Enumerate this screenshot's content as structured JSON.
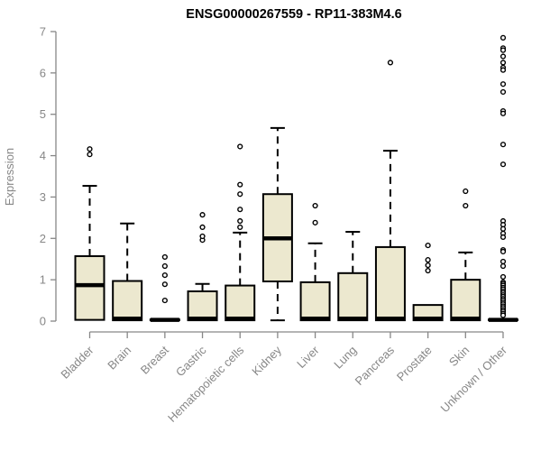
{
  "title": "ENSG00000267559 - RP11-383M4.6",
  "chart_data": {
    "type": "boxplot",
    "title": "ENSG00000267559 - RP11-383M4.6",
    "xlabel": "",
    "ylabel": "Expression",
    "ylim": [
      0,
      7
    ],
    "yticks": [
      0,
      1,
      2,
      3,
      4,
      5,
      6,
      7
    ],
    "grid": false,
    "legend": "none",
    "colors": {
      "box_fill": "#ece8cf",
      "box_stroke": "#000000",
      "median": "#000000",
      "whisker": "#000000",
      "outlier_stroke": "#000000",
      "outlier_fill": "#ffffff",
      "axis": "#878787",
      "title": "#000000"
    },
    "categories": [
      "Bladder",
      "Brain",
      "Breast",
      "Gastric",
      "Hematopoietic cells",
      "Kidney",
      "Liver",
      "Lung",
      "Pancreas",
      "Prostate",
      "Skin",
      "Unknown / Other"
    ],
    "series": [
      {
        "category": "Bladder",
        "whisker_low": 0.03,
        "q1": 0.03,
        "median": 0.87,
        "q3": 1.57,
        "whisker_high": 3.27,
        "outliers": [
          4.03,
          4.16
        ]
      },
      {
        "category": "Brain",
        "whisker_low": 0.02,
        "q1": 0.02,
        "median": 0.06,
        "q3": 0.97,
        "whisker_high": 2.36,
        "outliers": []
      },
      {
        "category": "Breast",
        "whisker_low": 0.02,
        "q1": 0.02,
        "median": 0.03,
        "q3": 0.04,
        "whisker_high": 0.04,
        "outliers": [
          0.5,
          0.89,
          1.11,
          1.33,
          1.55
        ]
      },
      {
        "category": "Gastric",
        "whisker_low": 0.02,
        "q1": 0.02,
        "median": 0.06,
        "q3": 0.72,
        "whisker_high": 0.9,
        "outliers": [
          1.96,
          2.05,
          2.27,
          2.57
        ]
      },
      {
        "category": "Hematopoietic cells",
        "whisker_low": 0.02,
        "q1": 0.02,
        "median": 0.06,
        "q3": 0.86,
        "whisker_high": 2.14,
        "outliers": [
          2.27,
          2.42,
          2.7,
          3.07,
          3.3,
          4.22
        ]
      },
      {
        "category": "Kidney",
        "whisker_low": 0.02,
        "q1": 0.96,
        "median": 2.0,
        "q3": 3.07,
        "whisker_high": 4.67,
        "outliers": []
      },
      {
        "category": "Liver",
        "whisker_low": 0.02,
        "q1": 0.02,
        "median": 0.06,
        "q3": 0.94,
        "whisker_high": 1.88,
        "outliers": [
          2.38,
          2.79
        ]
      },
      {
        "category": "Lung",
        "whisker_low": 0.02,
        "q1": 0.02,
        "median": 0.06,
        "q3": 1.16,
        "whisker_high": 2.16,
        "outliers": []
      },
      {
        "category": "Pancreas",
        "whisker_low": 0.02,
        "q1": 0.02,
        "median": 0.06,
        "q3": 1.79,
        "whisker_high": 4.12,
        "outliers": [
          6.25
        ]
      },
      {
        "category": "Prostate",
        "whisker_low": 0.02,
        "q1": 0.02,
        "median": 0.06,
        "q3": 0.39,
        "whisker_high": 0.39,
        "outliers": [
          1.22,
          1.35,
          1.48,
          1.83
        ]
      },
      {
        "category": "Skin",
        "whisker_low": 0.02,
        "q1": 0.02,
        "median": 0.06,
        "q3": 1.0,
        "whisker_high": 1.66,
        "outliers": [
          2.79,
          3.14
        ]
      },
      {
        "category": "Unknown / Other",
        "whisker_low": 0.02,
        "q1": 0.02,
        "median": 0.03,
        "q3": 0.04,
        "whisker_high": 0.04,
        "outliers": [
          6.85,
          6.6,
          6.55,
          6.4,
          6.25,
          6.13,
          6.07,
          5.73,
          5.54,
          5.08,
          5.02,
          4.27,
          3.79,
          2.42,
          2.33,
          2.23,
          2.12,
          2.03,
          1.72,
          1.68,
          1.44,
          1.33,
          1.07,
          0.94,
          0.9,
          0.86,
          0.81,
          0.77,
          0.72,
          0.68,
          0.63,
          0.59,
          0.54,
          0.5,
          0.45,
          0.41,
          0.36,
          0.32,
          0.27,
          0.23,
          0.18,
          0.14
        ]
      }
    ]
  }
}
